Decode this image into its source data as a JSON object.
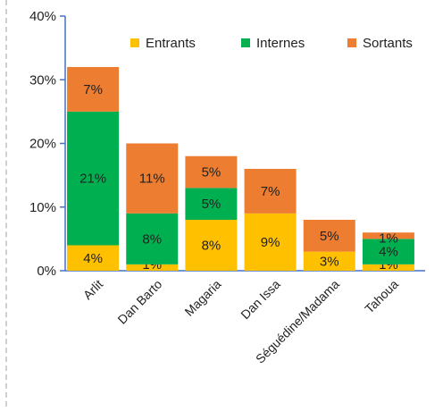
{
  "chart_data": {
    "type": "bar",
    "stacked": true,
    "categories": [
      "Arlit",
      "Dan Barto",
      "Magaria",
      "Dan Issa",
      "Séguédine/Madama",
      "Tahoua"
    ],
    "series": [
      {
        "name": "Entrants",
        "color": "#FFC000",
        "values": [
          4,
          1,
          8,
          9,
          3,
          1
        ],
        "labels": [
          "4%",
          "1%",
          "8%",
          "9%",
          "3%",
          "1%"
        ]
      },
      {
        "name": "Internes",
        "color": "#00B050",
        "values": [
          21,
          8,
          5,
          0,
          0,
          4
        ],
        "labels": [
          "21%",
          "8%",
          "5%",
          "",
          "",
          "4%"
        ]
      },
      {
        "name": "Sortants",
        "color": "#ED7D31",
        "values": [
          7,
          11,
          5,
          7,
          5,
          1
        ],
        "labels": [
          "7%",
          "11%",
          "5%",
          "7%",
          "5%",
          "1%"
        ]
      }
    ],
    "y_ticks": [
      "0%",
      "10%",
      "20%",
      "30%",
      "40%"
    ],
    "ylim": [
      0,
      40
    ],
    "grid": false,
    "legend_position": "top-right"
  }
}
